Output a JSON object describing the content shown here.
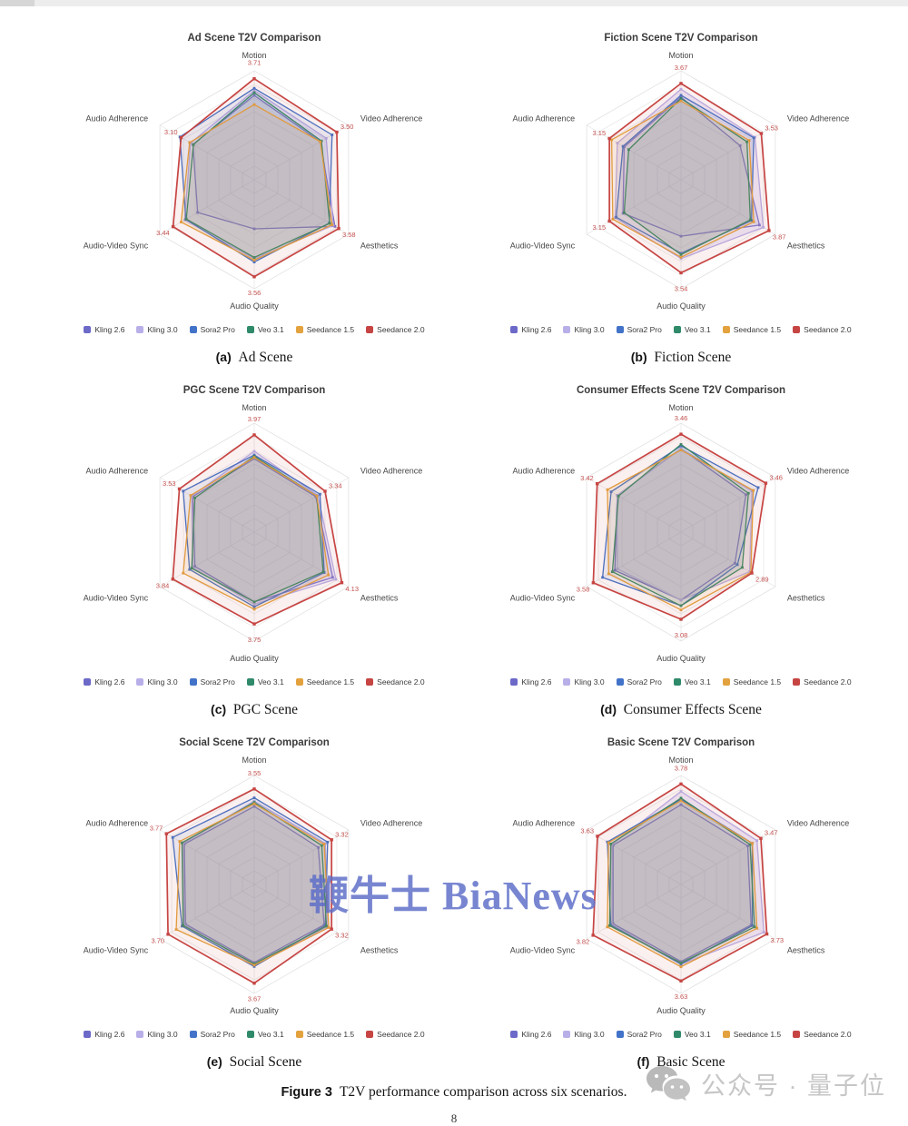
{
  "page": {
    "figure_caption_label": "Figure 3",
    "figure_caption_text": "T2V performance comparison across six scenarios.",
    "page_number": "8",
    "watermark": "鞭牛士 BiaNews",
    "stamp_text": "公众号 · 量子位"
  },
  "legend": {
    "items": [
      {
        "label": "Kling 2.6",
        "color": "#6c69c8"
      },
      {
        "label": "Kling 3.0",
        "color": "#b8afe9"
      },
      {
        "label": "Sora2 Pro",
        "color": "#4273c8"
      },
      {
        "label": "Veo 3.1",
        "color": "#2f8a69"
      },
      {
        "label": "Seedance 1.5",
        "color": "#e3a23e"
      },
      {
        "label": "Seedance 2.0",
        "color": "#c64543"
      }
    ]
  },
  "chart_data": [
    {
      "type": "radar",
      "title": "Ad Scene T2V Comparison",
      "caption_marker": "(a)",
      "caption": "Ad Scene",
      "axes": [
        "Motion",
        "Video Adherence",
        "Aesthetics",
        "Audio Quality",
        "Audio-Video Sync",
        "Audio Adherence"
      ],
      "axis_max": 4.0,
      "labeled_series": "Seedance 2.0",
      "labels": [
        "3.71",
        "3.50",
        "3.58",
        "3.56",
        "3.44",
        "3.10"
      ],
      "label_color": "#c2504e",
      "series": [
        {
          "name": "Kling 2.6",
          "values": [
            3.1,
            2.8,
            3.42,
            1.8,
            2.4,
            2.6
          ]
        },
        {
          "name": "Kling 3.0",
          "values": [
            3.28,
            3.05,
            3.35,
            2.9,
            2.95,
            2.7
          ]
        },
        {
          "name": "Sora2 Pro",
          "values": [
            3.36,
            3.3,
            3.18,
            3.02,
            2.9,
            3.15
          ]
        },
        {
          "name": "Veo 3.1",
          "values": [
            3.2,
            2.85,
            3.2,
            2.85,
            2.88,
            2.58
          ]
        },
        {
          "name": "Seedance 1.5",
          "values": [
            2.76,
            2.8,
            3.3,
            2.95,
            3.1,
            2.74
          ]
        },
        {
          "name": "Seedance 2.0",
          "values": [
            3.71,
            3.5,
            3.58,
            3.56,
            3.44,
            3.1
          ]
        }
      ]
    },
    {
      "type": "radar",
      "title": "Fiction Scene T2V Comparison",
      "caption_marker": "(b)",
      "caption": "Fiction Scene",
      "axes": [
        "Motion",
        "Video Adherence",
        "Aesthetics",
        "Audio Quality",
        "Audio-Video Sync",
        "Audio Adherence"
      ],
      "axis_max": 4.15,
      "labeled_series": "Seedance 2.0",
      "labels": [
        "3.67",
        "3.53",
        "3.87",
        "3.54",
        "3.15",
        "3.15"
      ],
      "label_color": "#c2504e",
      "series": [
        {
          "name": "Kling 2.6",
          "values": [
            3.15,
            2.6,
            3.45,
            2.15,
            2.55,
            2.5
          ]
        },
        {
          "name": "Kling 3.0",
          "values": [
            3.45,
            3.25,
            3.62,
            3.0,
            2.9,
            2.8
          ]
        },
        {
          "name": "Sora2 Pro",
          "values": [
            3.22,
            3.2,
            3.1,
            2.8,
            2.85,
            2.55
          ]
        },
        {
          "name": "Veo 3.1",
          "values": [
            3.1,
            2.9,
            3.05,
            2.85,
            2.5,
            2.3
          ]
        },
        {
          "name": "Seedance 1.5",
          "values": [
            3.0,
            3.0,
            3.2,
            2.95,
            3.0,
            3.05
          ]
        },
        {
          "name": "Seedance 2.0",
          "values": [
            3.67,
            3.53,
            3.87,
            3.54,
            3.15,
            3.15
          ]
        }
      ]
    },
    {
      "type": "radar",
      "title": "PGC Scene T2V Comparison",
      "caption_marker": "(c)",
      "caption": "PGC Scene",
      "axes": [
        "Motion",
        "Video Adherence",
        "Aesthetics",
        "Audio Quality",
        "Audio-Video Sync",
        "Audio Adherence"
      ],
      "axis_max": 4.45,
      "labeled_series": "Seedance 2.0",
      "labels": [
        "3.97",
        "3.34",
        "4.13",
        "3.75",
        "3.84",
        "3.53"
      ],
      "label_color": "#c2504e",
      "series": [
        {
          "name": "Kling 2.6",
          "values": [
            3.0,
            2.9,
            3.7,
            2.85,
            2.8,
            2.9
          ]
        },
        {
          "name": "Kling 3.0",
          "values": [
            3.3,
            3.0,
            3.85,
            2.95,
            2.9,
            2.95
          ]
        },
        {
          "name": "Sora2 Pro",
          "values": [
            3.15,
            3.1,
            3.3,
            3.05,
            3.05,
            3.35
          ]
        },
        {
          "name": "Veo 3.1",
          "values": [
            3.1,
            2.95,
            3.25,
            2.85,
            2.95,
            2.8
          ]
        },
        {
          "name": "Seedance 1.5",
          "values": [
            3.05,
            2.95,
            3.5,
            3.15,
            3.35,
            3.0
          ]
        },
        {
          "name": "Seedance 2.0",
          "values": [
            3.97,
            3.34,
            4.13,
            3.75,
            3.84,
            3.53
          ]
        }
      ]
    },
    {
      "type": "radar",
      "title": "Consumer Effects Scene T2V Comparison",
      "caption_marker": "(d)",
      "caption": "Consumer Effects Scene",
      "axes": [
        "Motion",
        "Video Adherence",
        "Aesthetics",
        "Audio Quality",
        "Audio-Video Sync",
        "Audio Adherence"
      ],
      "axis_max": 3.85,
      "labeled_series": "Seedance 2.0",
      "labels": [
        "3.46",
        "3.46",
        "2.89",
        "3.08",
        "3.58",
        "3.42"
      ],
      "label_color": "#c2504e",
      "series": [
        {
          "name": "Kling 2.6",
          "values": [
            2.95,
            2.65,
            2.2,
            2.4,
            2.7,
            2.6
          ]
        },
        {
          "name": "Kling 3.0",
          "values": [
            2.95,
            2.9,
            2.8,
            2.4,
            2.6,
            2.6
          ]
        },
        {
          "name": "Sora2 Pro",
          "values": [
            3.05,
            3.15,
            2.3,
            2.6,
            3.2,
            2.85
          ]
        },
        {
          "name": "Veo 3.1",
          "values": [
            3.1,
            2.75,
            2.5,
            2.6,
            2.8,
            2.55
          ]
        },
        {
          "name": "Seedance 1.5",
          "values": [
            2.9,
            2.95,
            2.85,
            2.75,
            2.95,
            3.0
          ]
        },
        {
          "name": "Seedance 2.0",
          "values": [
            3.46,
            3.46,
            2.89,
            3.08,
            3.58,
            3.42
          ]
        }
      ]
    },
    {
      "type": "radar",
      "title": "Social Scene T2V Comparison",
      "caption_marker": "(e)",
      "caption": "Social Scene",
      "axes": [
        "Motion",
        "Video Adherence",
        "Aesthetics",
        "Audio Quality",
        "Audio-Video Sync",
        "Audio Adherence"
      ],
      "axis_max": 4.05,
      "labeled_series": "Seedance 2.0",
      "labels": [
        "3.55",
        "3.32",
        "3.32",
        "3.67",
        "3.70",
        "3.77"
      ],
      "label_color": "#c2504e",
      "series": [
        {
          "name": "Kling 2.6",
          "values": [
            2.9,
            2.75,
            3.0,
            2.9,
            2.95,
            3.0
          ]
        },
        {
          "name": "Kling 3.0",
          "values": [
            3.1,
            3.05,
            3.15,
            3.0,
            3.0,
            3.05
          ]
        },
        {
          "name": "Sora2 Pro",
          "values": [
            3.22,
            3.15,
            3.05,
            3.05,
            3.1,
            3.5
          ]
        },
        {
          "name": "Veo 3.1",
          "values": [
            3.05,
            2.9,
            3.1,
            2.95,
            3.05,
            3.1
          ]
        },
        {
          "name": "Seedance 1.5",
          "values": [
            3.0,
            3.0,
            3.2,
            3.0,
            3.35,
            3.2
          ]
        },
        {
          "name": "Seedance 2.0",
          "values": [
            3.55,
            3.32,
            3.32,
            3.67,
            3.7,
            3.77
          ]
        }
      ]
    },
    {
      "type": "radar",
      "title": "Basic Scene T2V Comparison",
      "caption_marker": "(f)",
      "caption": "Basic Scene",
      "axes": [
        "Motion",
        "Video Adherence",
        "Aesthetics",
        "Audio Quality",
        "Audio-Video Sync",
        "Audio Adherence"
      ],
      "axis_max": 4.1,
      "labeled_series": "Seedance 2.0",
      "labels": [
        "3.78",
        "3.47",
        "3.73",
        "3.63",
        "3.82",
        "3.63"
      ],
      "label_color": "#c2504e",
      "series": [
        {
          "name": "Kling 2.6",
          "values": [
            3.0,
            2.9,
            3.05,
            2.9,
            2.95,
            2.95
          ]
        },
        {
          "name": "Kling 3.0",
          "values": [
            3.5,
            3.3,
            3.6,
            3.0,
            3.0,
            3.0
          ]
        },
        {
          "name": "Sora2 Pro",
          "values": [
            3.2,
            3.1,
            3.1,
            3.0,
            3.05,
            3.2
          ]
        },
        {
          "name": "Veo 3.1",
          "values": [
            3.25,
            3.0,
            3.2,
            2.95,
            3.1,
            3.05
          ]
        },
        {
          "name": "Seedance 1.5",
          "values": [
            3.15,
            3.1,
            3.3,
            3.1,
            3.2,
            3.15
          ]
        },
        {
          "name": "Seedance 2.0",
          "values": [
            3.78,
            3.47,
            3.73,
            3.63,
            3.82,
            3.63
          ]
        }
      ]
    }
  ]
}
